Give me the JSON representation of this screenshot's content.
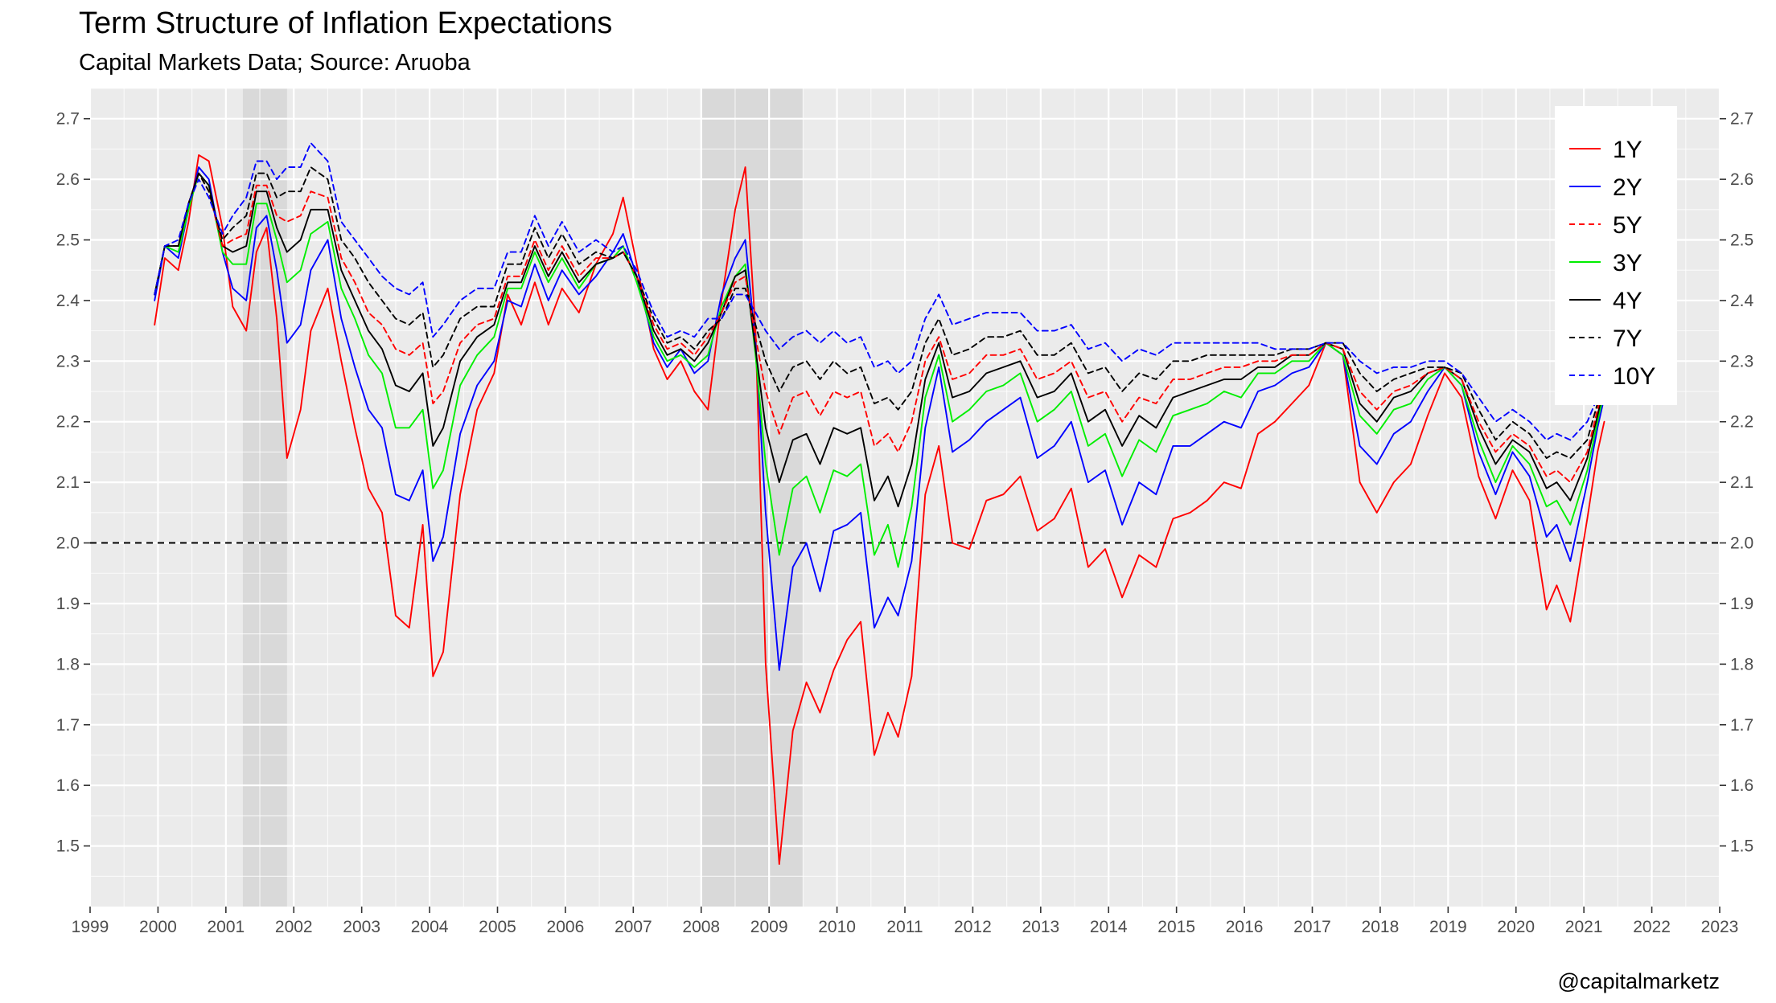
{
  "title": "Term Structure of Inflation Expectations",
  "subtitle": "Capital Markets Data; Source: Aruoba",
  "caption": "@capitalmarketz",
  "colors": {
    "panel_bg": "#ebebeb",
    "grid_major": "#ffffff",
    "recession_shade": "#d9d9d9",
    "reference_line": "#000000"
  },
  "chart_data": {
    "type": "line",
    "xlim": [
      1999,
      2023
    ],
    "ylim": [
      1.4,
      2.75
    ],
    "x_ticks": [
      "1999",
      "2000",
      "2001",
      "2002",
      "2003",
      "2004",
      "2005",
      "2006",
      "2007",
      "2008",
      "2009",
      "2010",
      "2011",
      "2012",
      "2013",
      "2014",
      "2015",
      "2016",
      "2017",
      "2018",
      "2019",
      "2020",
      "2021",
      "2022",
      "2023"
    ],
    "y_ticks": [
      "1.5",
      "1.6",
      "1.7",
      "1.8",
      "1.9",
      "2.0",
      "2.1",
      "2.2",
      "2.3",
      "2.4",
      "2.5",
      "2.6",
      "2.7"
    ],
    "axis_sides": {
      "y": "left-and-right"
    },
    "grid": true,
    "legend_position": "top-right",
    "reference_line": {
      "y": 2.0,
      "style": "dashed"
    },
    "recessions": [
      [
        2001.25,
        2001.9
      ],
      [
        2008.0,
        2009.5
      ]
    ],
    "x": [
      1999.95,
      2000.1,
      2000.3,
      2000.45,
      2000.6,
      2000.75,
      2000.95,
      2001.1,
      2001.3,
      2001.45,
      2001.6,
      2001.75,
      2001.9,
      2002.1,
      2002.25,
      2002.5,
      2002.7,
      2002.9,
      2003.1,
      2003.3,
      2003.5,
      2003.7,
      2003.9,
      2004.05,
      2004.2,
      2004.45,
      2004.7,
      2004.95,
      2005.15,
      2005.35,
      2005.55,
      2005.75,
      2005.95,
      2006.2,
      2006.45,
      2006.7,
      2006.85,
      2007.05,
      2007.3,
      2007.5,
      2007.7,
      2007.9,
      2008.1,
      2008.3,
      2008.5,
      2008.65,
      2008.8,
      2008.95,
      2009.15,
      2009.35,
      2009.55,
      2009.75,
      2009.95,
      2010.15,
      2010.35,
      2010.55,
      2010.75,
      2010.9,
      2011.1,
      2011.3,
      2011.5,
      2011.7,
      2011.95,
      2012.2,
      2012.45,
      2012.7,
      2012.95,
      2013.2,
      2013.45,
      2013.7,
      2013.95,
      2014.2,
      2014.45,
      2014.7,
      2014.95,
      2015.2,
      2015.45,
      2015.7,
      2015.95,
      2016.2,
      2016.45,
      2016.7,
      2016.95,
      2017.2,
      2017.45,
      2017.7,
      2017.95,
      2018.2,
      2018.45,
      2018.7,
      2018.95,
      2019.2,
      2019.45,
      2019.7,
      2019.95,
      2020.2,
      2020.45,
      2020.6,
      2020.8,
      2021.05,
      2021.2,
      2021.3
    ],
    "series": [
      {
        "name": "1Y",
        "color": "#ff0000",
        "dash": "solid",
        "values": [
          2.36,
          2.47,
          2.45,
          2.53,
          2.64,
          2.63,
          2.52,
          2.39,
          2.35,
          2.48,
          2.52,
          2.37,
          2.14,
          2.22,
          2.35,
          2.42,
          2.3,
          2.19,
          2.09,
          2.05,
          1.88,
          1.86,
          2.03,
          1.78,
          1.82,
          2.08,
          2.22,
          2.28,
          2.41,
          2.36,
          2.43,
          2.36,
          2.42,
          2.38,
          2.46,
          2.51,
          2.57,
          2.46,
          2.32,
          2.27,
          2.3,
          2.25,
          2.22,
          2.4,
          2.55,
          2.62,
          2.35,
          1.8,
          1.47,
          1.69,
          1.77,
          1.72,
          1.79,
          1.84,
          1.87,
          1.65,
          1.72,
          1.68,
          1.78,
          2.08,
          2.16,
          2.0,
          1.99,
          2.07,
          2.08,
          2.11,
          2.02,
          2.04,
          2.09,
          1.96,
          1.99,
          1.91,
          1.98,
          1.96,
          2.04,
          2.05,
          2.07,
          2.1,
          2.09,
          2.18,
          2.2,
          2.23,
          2.26,
          2.33,
          2.31,
          2.1,
          2.05,
          2.1,
          2.13,
          2.21,
          2.28,
          2.24,
          2.11,
          2.04,
          2.12,
          2.07,
          1.89,
          1.93,
          1.87,
          2.04,
          2.15,
          2.2
        ]
      },
      {
        "name": "2Y",
        "color": "#0000ff",
        "dash": "solid",
        "values": [
          2.4,
          2.49,
          2.47,
          2.55,
          2.62,
          2.6,
          2.48,
          2.42,
          2.4,
          2.52,
          2.54,
          2.45,
          2.33,
          2.36,
          2.45,
          2.5,
          2.37,
          2.29,
          2.22,
          2.19,
          2.08,
          2.07,
          2.12,
          1.97,
          2.01,
          2.18,
          2.26,
          2.3,
          2.4,
          2.39,
          2.46,
          2.4,
          2.45,
          2.41,
          2.44,
          2.48,
          2.51,
          2.44,
          2.33,
          2.29,
          2.32,
          2.28,
          2.3,
          2.41,
          2.47,
          2.5,
          2.33,
          2.05,
          1.79,
          1.96,
          2.0,
          1.92,
          2.02,
          2.03,
          2.05,
          1.86,
          1.91,
          1.88,
          1.97,
          2.19,
          2.29,
          2.15,
          2.17,
          2.2,
          2.22,
          2.24,
          2.14,
          2.16,
          2.2,
          2.1,
          2.12,
          2.03,
          2.1,
          2.08,
          2.16,
          2.16,
          2.18,
          2.2,
          2.19,
          2.25,
          2.26,
          2.28,
          2.29,
          2.33,
          2.31,
          2.16,
          2.13,
          2.18,
          2.2,
          2.25,
          2.29,
          2.26,
          2.15,
          2.08,
          2.15,
          2.11,
          2.01,
          2.03,
          1.97,
          2.1,
          2.19,
          2.24
        ]
      },
      {
        "name": "5Y",
        "color": "#ff0000",
        "dash": "dashed",
        "values": [
          2.41,
          2.49,
          2.49,
          2.56,
          2.61,
          2.58,
          2.49,
          2.5,
          2.51,
          2.59,
          2.59,
          2.54,
          2.53,
          2.54,
          2.58,
          2.57,
          2.47,
          2.43,
          2.38,
          2.36,
          2.32,
          2.31,
          2.33,
          2.23,
          2.25,
          2.33,
          2.36,
          2.37,
          2.44,
          2.44,
          2.5,
          2.45,
          2.49,
          2.44,
          2.47,
          2.47,
          2.48,
          2.44,
          2.36,
          2.32,
          2.33,
          2.31,
          2.34,
          2.38,
          2.43,
          2.44,
          2.34,
          2.25,
          2.18,
          2.24,
          2.25,
          2.21,
          2.25,
          2.24,
          2.25,
          2.16,
          2.18,
          2.15,
          2.2,
          2.3,
          2.34,
          2.27,
          2.28,
          2.31,
          2.31,
          2.32,
          2.27,
          2.28,
          2.3,
          2.24,
          2.25,
          2.2,
          2.24,
          2.23,
          2.27,
          2.27,
          2.28,
          2.29,
          2.29,
          2.3,
          2.3,
          2.31,
          2.31,
          2.33,
          2.32,
          2.25,
          2.22,
          2.25,
          2.26,
          2.28,
          2.29,
          2.27,
          2.2,
          2.15,
          2.18,
          2.16,
          2.11,
          2.12,
          2.1,
          2.15,
          2.22,
          2.26
        ]
      },
      {
        "name": "3Y",
        "color": "#00ee00",
        "dash": "solid",
        "values": [
          2.41,
          2.49,
          2.48,
          2.55,
          2.61,
          2.59,
          2.48,
          2.46,
          2.46,
          2.56,
          2.56,
          2.5,
          2.43,
          2.45,
          2.51,
          2.53,
          2.42,
          2.37,
          2.31,
          2.28,
          2.19,
          2.19,
          2.22,
          2.09,
          2.12,
          2.26,
          2.31,
          2.34,
          2.42,
          2.42,
          2.48,
          2.43,
          2.47,
          2.42,
          2.46,
          2.47,
          2.49,
          2.43,
          2.34,
          2.3,
          2.31,
          2.29,
          2.31,
          2.39,
          2.44,
          2.46,
          2.31,
          2.13,
          1.98,
          2.09,
          2.11,
          2.05,
          2.12,
          2.11,
          2.13,
          1.98,
          2.03,
          1.96,
          2.06,
          2.24,
          2.31,
          2.2,
          2.22,
          2.25,
          2.26,
          2.28,
          2.2,
          2.22,
          2.25,
          2.16,
          2.18,
          2.11,
          2.17,
          2.15,
          2.21,
          2.22,
          2.23,
          2.25,
          2.24,
          2.28,
          2.28,
          2.3,
          2.3,
          2.33,
          2.31,
          2.21,
          2.18,
          2.22,
          2.23,
          2.27,
          2.29,
          2.26,
          2.17,
          2.1,
          2.16,
          2.13,
          2.06,
          2.07,
          2.03,
          2.12,
          2.2,
          2.25
        ]
      },
      {
        "name": "4Y",
        "color": "#000000",
        "dash": "solid",
        "values": [
          2.41,
          2.49,
          2.49,
          2.56,
          2.61,
          2.59,
          2.49,
          2.48,
          2.49,
          2.58,
          2.58,
          2.52,
          2.48,
          2.5,
          2.55,
          2.55,
          2.45,
          2.4,
          2.35,
          2.32,
          2.26,
          2.25,
          2.28,
          2.16,
          2.19,
          2.3,
          2.34,
          2.36,
          2.43,
          2.43,
          2.49,
          2.44,
          2.48,
          2.43,
          2.46,
          2.47,
          2.48,
          2.44,
          2.35,
          2.31,
          2.32,
          2.3,
          2.33,
          2.38,
          2.44,
          2.45,
          2.32,
          2.19,
          2.1,
          2.17,
          2.18,
          2.13,
          2.19,
          2.18,
          2.19,
          2.07,
          2.11,
          2.06,
          2.13,
          2.27,
          2.33,
          2.24,
          2.25,
          2.28,
          2.29,
          2.3,
          2.24,
          2.25,
          2.28,
          2.2,
          2.22,
          2.16,
          2.21,
          2.19,
          2.24,
          2.25,
          2.26,
          2.27,
          2.27,
          2.29,
          2.29,
          2.31,
          2.31,
          2.33,
          2.32,
          2.23,
          2.2,
          2.24,
          2.25,
          2.28,
          2.29,
          2.27,
          2.19,
          2.13,
          2.17,
          2.15,
          2.09,
          2.1,
          2.07,
          2.14,
          2.21,
          2.26
        ]
      },
      {
        "name": "7Y",
        "color": "#000000",
        "dash": "dashed",
        "values": [
          2.41,
          2.49,
          2.49,
          2.56,
          2.61,
          2.58,
          2.5,
          2.52,
          2.54,
          2.61,
          2.61,
          2.57,
          2.58,
          2.58,
          2.62,
          2.6,
          2.5,
          2.47,
          2.43,
          2.4,
          2.37,
          2.36,
          2.38,
          2.29,
          2.31,
          2.37,
          2.39,
          2.39,
          2.46,
          2.46,
          2.52,
          2.47,
          2.51,
          2.46,
          2.48,
          2.47,
          2.48,
          2.44,
          2.37,
          2.33,
          2.34,
          2.32,
          2.35,
          2.37,
          2.42,
          2.42,
          2.36,
          2.3,
          2.25,
          2.29,
          2.3,
          2.27,
          2.3,
          2.28,
          2.29,
          2.23,
          2.24,
          2.22,
          2.25,
          2.33,
          2.37,
          2.31,
          2.32,
          2.34,
          2.34,
          2.35,
          2.31,
          2.31,
          2.33,
          2.28,
          2.29,
          2.25,
          2.28,
          2.27,
          2.3,
          2.3,
          2.31,
          2.31,
          2.31,
          2.31,
          2.31,
          2.32,
          2.32,
          2.33,
          2.33,
          2.28,
          2.25,
          2.27,
          2.28,
          2.29,
          2.29,
          2.28,
          2.22,
          2.17,
          2.2,
          2.18,
          2.14,
          2.15,
          2.14,
          2.17,
          2.23,
          2.27
        ]
      },
      {
        "name": "10Y",
        "color": "#0000ff",
        "dash": "dashed",
        "values": [
          2.41,
          2.49,
          2.5,
          2.56,
          2.6,
          2.57,
          2.51,
          2.54,
          2.57,
          2.63,
          2.63,
          2.6,
          2.62,
          2.62,
          2.66,
          2.63,
          2.53,
          2.5,
          2.47,
          2.44,
          2.42,
          2.41,
          2.43,
          2.34,
          2.36,
          2.4,
          2.42,
          2.42,
          2.48,
          2.48,
          2.54,
          2.49,
          2.53,
          2.48,
          2.5,
          2.48,
          2.49,
          2.45,
          2.38,
          2.34,
          2.35,
          2.34,
          2.37,
          2.37,
          2.41,
          2.41,
          2.38,
          2.35,
          2.32,
          2.34,
          2.35,
          2.33,
          2.35,
          2.33,
          2.34,
          2.29,
          2.3,
          2.28,
          2.3,
          2.37,
          2.41,
          2.36,
          2.37,
          2.38,
          2.38,
          2.38,
          2.35,
          2.35,
          2.36,
          2.32,
          2.33,
          2.3,
          2.32,
          2.31,
          2.33,
          2.33,
          2.33,
          2.33,
          2.33,
          2.33,
          2.32,
          2.32,
          2.32,
          2.33,
          2.33,
          2.3,
          2.28,
          2.29,
          2.29,
          2.3,
          2.3,
          2.28,
          2.24,
          2.2,
          2.22,
          2.2,
          2.17,
          2.18,
          2.17,
          2.2,
          2.24,
          2.27
        ]
      }
    ]
  }
}
